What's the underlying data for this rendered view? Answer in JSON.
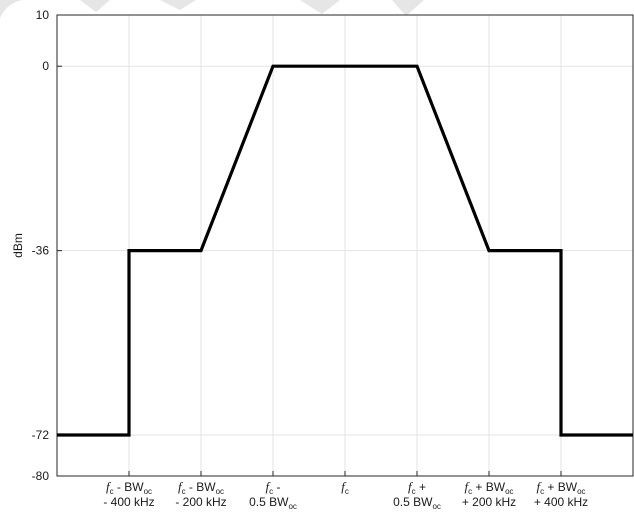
{
  "chart_data": {
    "type": "line",
    "ylabel": "dBm",
    "ylim": [
      -80,
      10
    ],
    "yticks": [
      10,
      0,
      -36,
      -72,
      -80
    ],
    "grid": true,
    "x_tick_labels": [
      {
        "pos": 1,
        "lines": [
          [
            {
              "t": "f",
              "s": "f"
            },
            {
              "t": "c",
              "s": "sub"
            },
            {
              "t": " - BW"
            },
            {
              "t": "oc",
              "s": "sub"
            }
          ],
          [
            {
              "t": "- 400 kHz"
            }
          ]
        ]
      },
      {
        "pos": 2,
        "lines": [
          [
            {
              "t": "f",
              "s": "f"
            },
            {
              "t": "c",
              "s": "sub"
            },
            {
              "t": " - BW"
            },
            {
              "t": "oc",
              "s": "sub"
            }
          ],
          [
            {
              "t": "- 200 kHz"
            }
          ]
        ]
      },
      {
        "pos": 3,
        "lines": [
          [
            {
              "t": "f",
              "s": "f"
            },
            {
              "t": "c",
              "s": "sub"
            },
            {
              "t": " -"
            }
          ],
          [
            {
              "t": "0.5 BW"
            },
            {
              "t": "oc",
              "s": "sub"
            }
          ]
        ]
      },
      {
        "pos": 4,
        "lines": [
          [
            {
              "t": "f",
              "s": "f"
            },
            {
              "t": "c",
              "s": "sub"
            }
          ]
        ]
      },
      {
        "pos": 5,
        "lines": [
          [
            {
              "t": "f",
              "s": "f"
            },
            {
              "t": "c",
              "s": "sub"
            },
            {
              "t": " +"
            }
          ],
          [
            {
              "t": "0.5 BW"
            },
            {
              "t": "oc",
              "s": "sub"
            }
          ]
        ]
      },
      {
        "pos": 6,
        "lines": [
          [
            {
              "t": "f",
              "s": "f"
            },
            {
              "t": "c",
              "s": "sub"
            },
            {
              "t": " + BW"
            },
            {
              "t": "oc",
              "s": "sub"
            }
          ],
          [
            {
              "t": "+ 200 kHz"
            }
          ]
        ]
      },
      {
        "pos": 7,
        "lines": [
          [
            {
              "t": "f",
              "s": "f"
            },
            {
              "t": "c",
              "s": "sub"
            },
            {
              "t": " + BW"
            },
            {
              "t": "oc",
              "s": "sub"
            }
          ],
          [
            {
              "t": "+ 400 kHz"
            }
          ]
        ]
      }
    ],
    "xlim": [
      0,
      8
    ],
    "series": [
      {
        "color": "#000000",
        "points": [
          [
            0,
            -72
          ],
          [
            1,
            -72
          ],
          [
            1,
            -36
          ],
          [
            2,
            -36
          ],
          [
            3,
            0
          ],
          [
            5,
            0
          ],
          [
            6,
            -36
          ],
          [
            7,
            -36
          ],
          [
            7,
            -72
          ],
          [
            8,
            -72
          ]
        ]
      }
    ]
  }
}
